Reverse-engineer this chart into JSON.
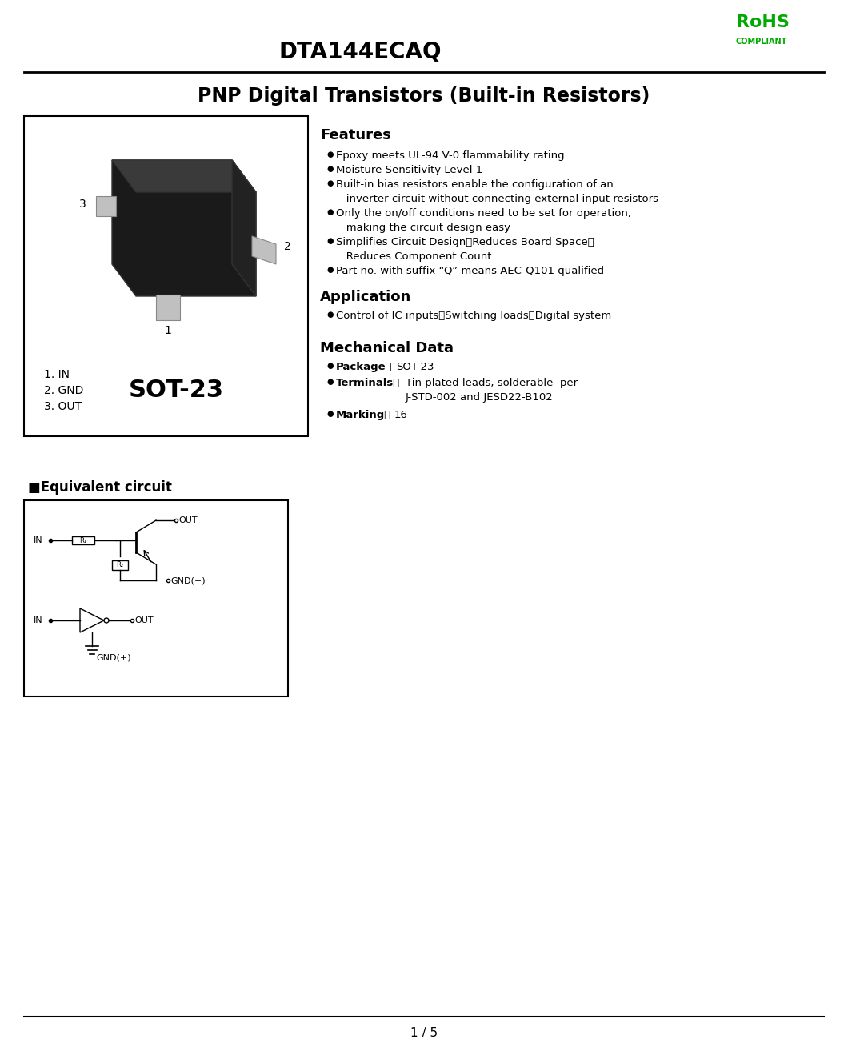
{
  "title_main": "DTA144ECAQ",
  "rohs_text": "RoHS",
  "compliant_text": "COMPLIANT",
  "rohs_color": "#00aa00",
  "title_product": "PNP Digital Transistors (Built-in Resistors)",
  "package_label": "SOT-23",
  "pin1_label": "1. IN",
  "pin2_label": "2. GND",
  "pin3_label": "3. OUT",
  "features_title": "Features",
  "features": [
    "Epoxy meets UL-94 V-0 flammability rating",
    "Moisture Sensitivity Level 1",
    "Built-in bias resistors enable the configuration of an\n  inverter circuit without connecting external input resistors",
    "Only the on/off conditions need to be set for operation,\n  making the circuit design easy",
    "Simplifies Circuit Design！Reduces Board Space！\n  Reduces Component Count",
    "Part no. with suffix “Q” means AEC-Q101 qualified"
  ],
  "application_title": "Application",
  "application": [
    "Control of IC inputs！Switching loads！Digital system"
  ],
  "mech_title": "Mechanical Data",
  "mech_package": "Package：  SOT-23",
  "mech_terminals": "Terminals：  Tin plated leads, solderable  per\n              J-STD-002 and JESD22-B102",
  "mech_marking": "Marking：  16",
  "equiv_title": "■Equivalent circuit",
  "page_number": "1 / 5",
  "bg_color": "#ffffff",
  "text_color": "#000000",
  "border_color": "#000000"
}
